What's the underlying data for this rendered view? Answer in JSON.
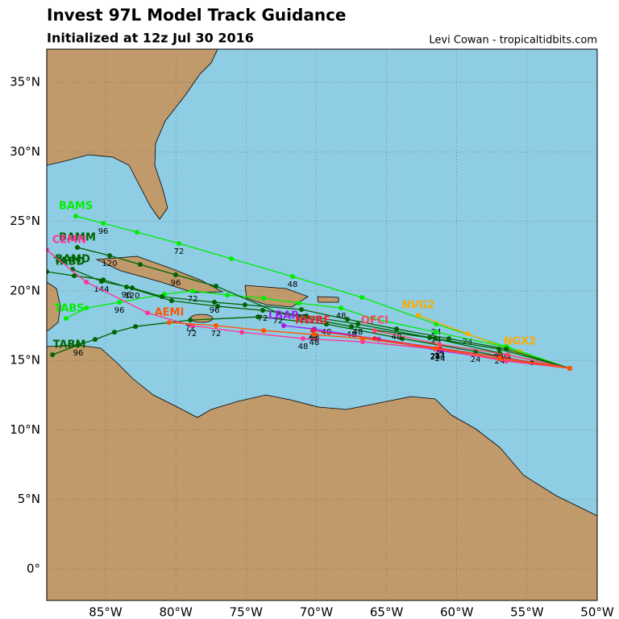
{
  "map": {
    "title": "Invest 97L Model Track Guidance",
    "subtitle": "Initialized at 12z Jul 30 2016",
    "credit": "Levi Cowan - tropicaltidbits.com",
    "lonlim": [
      -89.19,
      -50
    ],
    "latlim": [
      -2.26,
      37.38
    ],
    "lon_ticks": [
      {
        "value": -85,
        "label": "85°W"
      },
      {
        "value": -80,
        "label": "80°W"
      },
      {
        "value": -75,
        "label": "75°W"
      },
      {
        "value": -70,
        "label": "70°W"
      },
      {
        "value": -65,
        "label": "65°W"
      },
      {
        "value": -60,
        "label": "60°W"
      },
      {
        "value": -55,
        "label": "55°W"
      },
      {
        "value": -50,
        "label": "50°W"
      }
    ],
    "lat_ticks": [
      {
        "value": 0,
        "label": "0°"
      },
      {
        "value": 5,
        "label": "5°N"
      },
      {
        "value": 10,
        "label": "10°N"
      },
      {
        "value": 15,
        "label": "15°N"
      },
      {
        "value": 20,
        "label": "20°N"
      },
      {
        "value": 25,
        "label": "25°N"
      },
      {
        "value": 30,
        "label": "30°N"
      },
      {
        "value": 35,
        "label": "35°N"
      }
    ],
    "grid": true,
    "tracks": [
      {
        "name": "BAMS",
        "color": "#00ee00",
        "lon": [
          -51.95,
          -56.48,
          -61.47,
          -66.75,
          -71.69,
          -76.05,
          -79.78,
          -82.76,
          -85.17,
          -87.12
        ],
        "lat": [
          14.43,
          15.99,
          17.61,
          19.53,
          21.03,
          22.31,
          23.41,
          24.22,
          24.86,
          25.38
        ],
        "hours": [
          null,
          null,
          24,
          null,
          48,
          null,
          72,
          null,
          96,
          null
        ]
      },
      {
        "name": "NVG2",
        "color": "#ffaa00",
        "lon": [
          -51.95,
          -55.68,
          -59.24,
          -62.74
        ],
        "lat": [
          14.43,
          15.59,
          16.92,
          18.25
        ],
        "hours": [
          null,
          null,
          24,
          null
        ]
      },
      {
        "name": "NGX2",
        "color": "#ffaa00",
        "lon": [
          -51.95,
          -55.51
        ],
        "lat": [
          14.43,
          15.64
        ],
        "hours": [
          null,
          null
        ]
      },
      {
        "name": "TABS",
        "color": "#00ee00",
        "lon": [
          -51.95,
          -56.37,
          -61.47,
          -66.01,
          -68.24,
          -71.23,
          -73.75,
          -76.33,
          -78.8,
          -80.81,
          -84.02,
          -86.37,
          -87.81
        ],
        "lat": [
          14.43,
          15.93,
          17.03,
          18.02,
          18.77,
          19.12,
          19.47,
          19.7,
          19.99,
          19.76,
          19.18,
          18.77,
          18.02
        ],
        "hours": [
          null,
          null,
          24,
          null,
          48,
          null,
          null,
          null,
          72,
          null,
          96,
          null,
          null
        ]
      },
      {
        "name": "TABM",
        "color": "#006400",
        "lon": [
          -51.95,
          -54.65,
          -58.66,
          -63.88,
          -69.28,
          -74.15,
          -78.97,
          -82.87,
          -84.37,
          -85.75,
          -86.95,
          -88.78
        ],
        "lat": [
          14.43,
          14.83,
          15.64,
          16.57,
          17.61,
          18.13,
          17.9,
          17.44,
          17.03,
          16.51,
          16.11,
          15.41
        ],
        "hours": [
          null,
          null,
          24,
          null,
          48,
          null,
          72,
          null,
          null,
          null,
          96,
          null
        ]
      },
      {
        "name": "TABD",
        "color": "#006400",
        "lon": [
          -51.95,
          -56.94,
          -61.53,
          -67.04,
          -70.71,
          -73.81,
          -77.02,
          -80.3,
          -83.51,
          -85.17,
          -87.24,
          -89.19
        ],
        "lat": [
          14.43,
          15.53,
          16.57,
          17.61,
          18.19,
          18.6,
          18.89,
          19.29,
          20.28,
          20.8,
          21.09,
          21.38
        ],
        "hours": [
          null,
          24,
          null,
          48,
          null,
          72,
          null,
          null,
          96,
          null,
          null,
          null
        ]
      },
      {
        "name": "BAMD",
        "color": "#006400",
        "lon": [
          -51.95,
          -56.48,
          -60.56,
          -64.29,
          -67.79,
          -71.06,
          -75.08,
          -77.25,
          -80.98,
          -83.11,
          -85.29,
          -87.35
        ],
        "lat": [
          14.43,
          15.82,
          16.57,
          17.26,
          17.96,
          18.66,
          19.0,
          19.18,
          19.58,
          20.22,
          20.68,
          21.55
        ],
        "hours": [
          null,
          24,
          null,
          48,
          null,
          72,
          null,
          96,
          null,
          120,
          144,
          null
        ]
      },
      {
        "name": "BAMM",
        "color": "#006400",
        "lon": [
          -51.95,
          -57.0,
          -61.93,
          -67.5,
          -72.72,
          -77.14,
          -80.01,
          -82.54,
          -84.71,
          -87.01
        ],
        "lat": [
          14.43,
          15.82,
          16.63,
          17.44,
          18.42,
          20.34,
          21.15,
          21.9,
          22.54,
          23.12
        ],
        "hours": [
          null,
          24,
          null,
          48,
          72,
          null,
          96,
          null,
          120,
          null
        ]
      },
      {
        "name": "LBAR",
        "color": "#a020f0",
        "lon": [
          -51.95,
          -56.48,
          -61.19,
          -65.55,
          -70.14,
          -72.32
        ],
        "lat": [
          14.43,
          15.01,
          15.7,
          16.51,
          17.26,
          17.5
        ],
        "hours": [
          null,
          null,
          24,
          null,
          48,
          null
        ]
      },
      {
        "name": "HWRF",
        "color": "#ee2233",
        "lon": [
          -51.95,
          -56.94,
          -61.19,
          -65.84,
          -70.25
        ],
        "lat": [
          14.43,
          15.24,
          15.87,
          16.57,
          17.15
        ],
        "hours": [
          null,
          null,
          24,
          null,
          48
        ]
      },
      {
        "name": "OFCI",
        "color": "#ff4466",
        "lon": [
          -51.95,
          -56.37,
          -61.24,
          -65.84
        ],
        "lat": [
          14.43,
          15.41,
          16.16,
          17.15
        ],
        "hours": [
          null,
          null,
          24,
          null
        ]
      },
      {
        "name": "CEMN",
        "color": "#ff3399",
        "lon": [
          -51.95,
          -56.48,
          -61.53,
          -66.7,
          -70.94,
          -75.3,
          -78.86,
          -82.02,
          -86.37,
          -89.19
        ],
        "lat": [
          14.43,
          14.95,
          15.82,
          16.34,
          16.57,
          17.03,
          17.5,
          18.42,
          20.63,
          22.94
        ],
        "hours": [
          null,
          null,
          24,
          null,
          48,
          null,
          72,
          null,
          null,
          null
        ]
      },
      {
        "name": "AEMI",
        "color": "#ff5500",
        "lon": [
          -51.95,
          -56.94,
          -61.53,
          -66.7,
          -70.14,
          -73.75,
          -77.14,
          -80.47
        ],
        "lat": [
          14.43,
          15.12,
          15.87,
          16.57,
          16.86,
          17.15,
          17.5,
          17.73
        ],
        "hours": [
          null,
          null,
          24,
          null,
          48,
          null,
          72,
          null
        ]
      }
    ]
  }
}
